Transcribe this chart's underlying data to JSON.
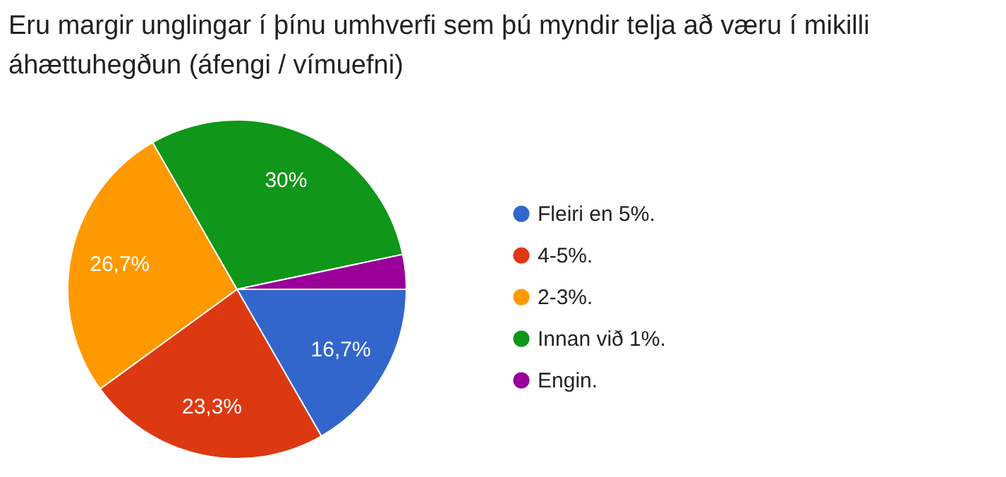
{
  "chart_data": {
    "type": "pie",
    "title": "Eru margir unglingar í þínu umhverfi sem þú myndir telja að væru í mikilli áhættuhegðun (áfengi / vímuefni)",
    "categories": [
      "Fleiri en 5%.",
      "4-5%.",
      "2-3%.",
      "Innan við 1%.",
      "Engin."
    ],
    "values": [
      16.7,
      23.3,
      26.7,
      30,
      3.3
    ],
    "value_labels": [
      "16,7%",
      "23,3%",
      "26,7%",
      "30%",
      null
    ],
    "colors": [
      "#3366cc",
      "#dc3912",
      "#ff9900",
      "#109618",
      "#990099"
    ],
    "legend": "right"
  }
}
